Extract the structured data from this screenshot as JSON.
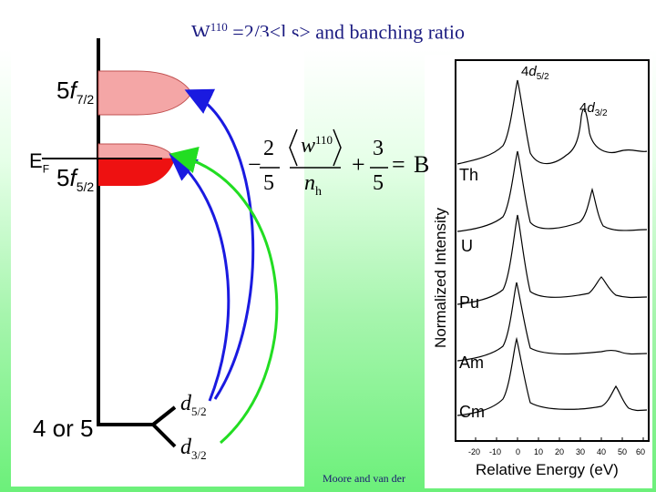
{
  "title": {
    "prefix": "W",
    "superscript": "110",
    "text": " =2/3<l.s> and banching ratio"
  },
  "energy_diagram": {
    "level_upper": {
      "main": "5",
      "italic": "f",
      "sub": "7/2"
    },
    "level_lower": {
      "main": "5",
      "italic": "f",
      "sub": "5/2"
    },
    "fermi": "E",
    "fermi_sub": "F",
    "core_level": "4 or 5",
    "d52": {
      "italic": "d",
      "sub": "5/2"
    },
    "d32": {
      "italic": "d",
      "sub": "3/2"
    },
    "colors": {
      "upper_band": "#f4a6a6",
      "lower_band": "#ee1111",
      "arrow_blue": "#1a1ae0",
      "arrow_green": "#22dd22"
    }
  },
  "formula": {
    "minus": "−",
    "coef_num": "2",
    "coef_den": "5",
    "w": "w",
    "w_sup": "110",
    "n": "n",
    "n_sub": "h",
    "plus": "+",
    "const_num": "3",
    "const_den": "5",
    "equals": "=",
    "rhs": "B"
  },
  "spectra": {
    "peak_52": {
      "main": "4",
      "italic": "d",
      "sub": "5/2"
    },
    "peak_32": {
      "main": "4",
      "italic": "d",
      "sub": "3/2"
    },
    "elements": [
      "Th",
      "U",
      "Pu",
      "Am",
      "Cm"
    ],
    "ylabel": "Normalized Intensity",
    "xlabel": "Relative Energy (eV)",
    "xticks": [
      "-20",
      "-10",
      "0",
      "10",
      "20",
      "30",
      "40",
      "50",
      "60"
    ]
  },
  "citation": "Moore and van der"
}
